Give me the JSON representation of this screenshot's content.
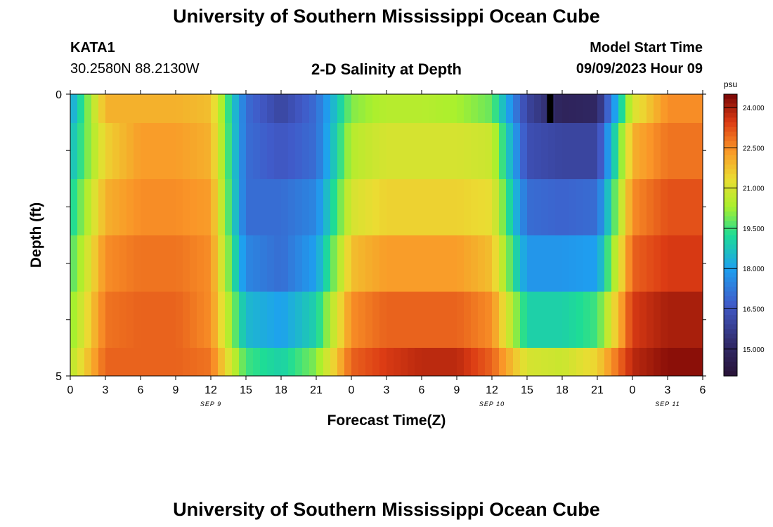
{
  "header": {
    "title": "University of Southern Mississippi Ocean Cube",
    "station": "KATA1",
    "coords": "30.2580N  88.2130W",
    "plot_title": "2-D Salinity at Depth",
    "model_label": "Model Start Time",
    "model_time": "09/09/2023 Hour 09"
  },
  "footer": {
    "title": "University of Southern Mississippi Ocean Cube"
  },
  "chart_data": {
    "type": "heatmap",
    "title": "2-D Salinity at Depth",
    "xlabel": "Forecast Time(Z)",
    "ylabel": "Depth (ft)",
    "y_ticks": [
      "0",
      "5"
    ],
    "ylim": [
      0,
      5
    ],
    "x_tick_labels": [
      "0",
      "3",
      "6",
      "9",
      "12",
      "15",
      "18",
      "21",
      "0",
      "3",
      "6",
      "9",
      "12",
      "15",
      "18",
      "21",
      "0",
      "3",
      "6"
    ],
    "day_labels": [
      {
        "label": "SEP 9",
        "at_index": 4
      },
      {
        "label": "SEP 10",
        "at_index": 12
      },
      {
        "label": "SEP 11",
        "at_index": 17
      }
    ],
    "colorbar": {
      "unit": "psu",
      "min": 14.0,
      "max": 24.5,
      "ticks": [
        "15.000",
        "16.500",
        "18.000",
        "19.500",
        "21.000",
        "22.500",
        "24.000"
      ]
    },
    "hours": [
      0,
      3,
      6,
      9,
      12,
      15,
      18,
      21,
      24,
      27,
      30,
      33,
      36,
      39,
      42,
      45,
      48,
      51,
      54
    ],
    "depth_rows": [
      {
        "depth_range": "0-0.5",
        "values": [
          18.0,
          22.0,
          22.0,
          22.0,
          21.8,
          17.0,
          16.0,
          17.0,
          20.0,
          20.5,
          20.5,
          20.3,
          19.8,
          16.0,
          14.8,
          15.0,
          21.0,
          22.5,
          22.5
        ]
      },
      {
        "depth_range": "0.5-1.5",
        "values": [
          18.5,
          21.5,
          22.3,
          22.3,
          22.0,
          17.0,
          16.5,
          17.0,
          20.5,
          21.0,
          21.0,
          21.0,
          20.8,
          16.3,
          16.0,
          16.0,
          22.0,
          22.8,
          22.8
        ]
      },
      {
        "depth_range": "1.5-2.5",
        "values": [
          19.0,
          22.0,
          22.5,
          22.5,
          22.3,
          17.0,
          17.0,
          17.5,
          21.0,
          21.5,
          21.5,
          21.5,
          21.3,
          17.0,
          16.8,
          17.0,
          22.5,
          23.2,
          23.2
        ]
      },
      {
        "depth_range": "2.5-3.5",
        "values": [
          19.5,
          22.5,
          22.8,
          22.8,
          22.5,
          17.5,
          17.0,
          18.0,
          21.8,
          22.3,
          22.3,
          22.3,
          21.8,
          17.8,
          17.8,
          18.0,
          23.0,
          23.5,
          23.5
        ]
      },
      {
        "depth_range": "3.5-4.5",
        "values": [
          20.0,
          22.8,
          23.0,
          23.0,
          22.5,
          18.5,
          18.0,
          19.0,
          22.5,
          23.0,
          23.0,
          23.0,
          22.5,
          19.0,
          19.0,
          19.5,
          23.5,
          24.0,
          24.0
        ]
      },
      {
        "depth_range": "4.5-5",
        "values": [
          20.5,
          23.0,
          23.0,
          23.0,
          22.8,
          19.5,
          19.0,
          20.0,
          23.0,
          23.5,
          23.8,
          23.8,
          23.0,
          21.0,
          20.8,
          21.5,
          23.8,
          24.3,
          24.3
        ]
      }
    ],
    "missing_marker": {
      "hour": 41,
      "depth_range": "0-0.5",
      "color": "#000000"
    }
  }
}
